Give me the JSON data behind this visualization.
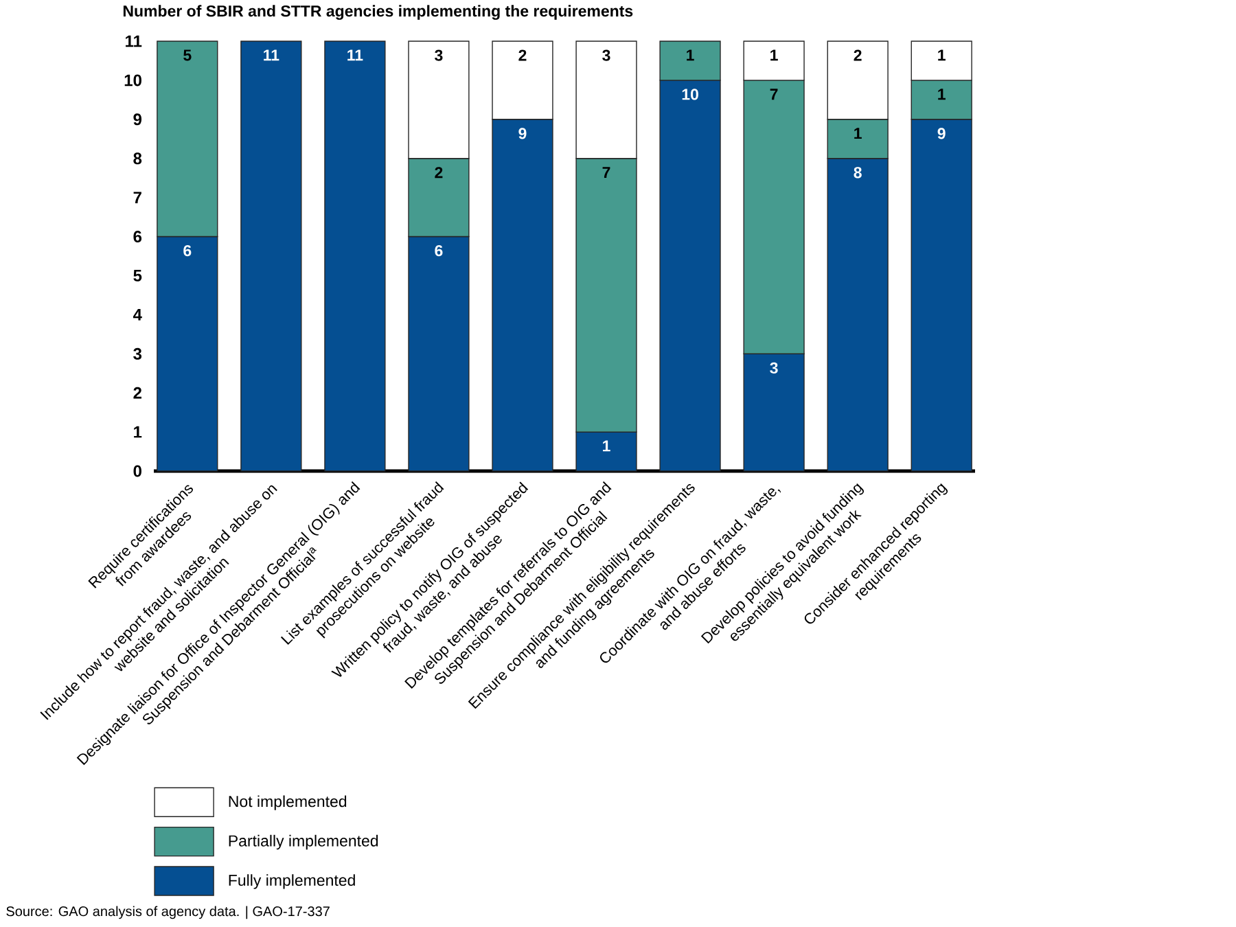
{
  "chart_data": {
    "type": "bar",
    "stacked": true,
    "title": "Number of SBIR and STTR agencies implementing the requirements",
    "categories": [
      "Require certifications from awardees",
      "Include how to report fraud, waste, and abuse on website and solicitation",
      "Designate liaison for Office of Inspector General (OIG) and Suspension and Debarment Official$^{a}$",
      "List examples of successful fraud prosecutions on website",
      "Written policy to notify OIG of suspected fraud, waste, and abuse",
      "Develop templates for referrals to OIG and Suspension and Debarment Official",
      "Ensure compliance with eligibility requirements and funding agreements",
      "Coordinate with OIG on fraud, waste, and abuse efforts",
      "Develop policies to avoid funding essentially equivalent work",
      "Consider enhanced reporting requirements"
    ],
    "series": [
      {
        "name": "Fully implemented",
        "color": "#054f92",
        "values": [
          6,
          11,
          11,
          6,
          9,
          1,
          10,
          3,
          8,
          9
        ]
      },
      {
        "name": "Partially implemented",
        "color": "#469b8f",
        "values": [
          5,
          null,
          null,
          2,
          null,
          7,
          1,
          7,
          1,
          1
        ]
      },
      {
        "name": "Not implemented",
        "color": "#ffffff",
        "values": [
          null,
          null,
          null,
          3,
          2,
          3,
          null,
          1,
          2,
          1
        ]
      }
    ],
    "ylim": [
      0,
      11
    ],
    "yticks": [
      0,
      1,
      2,
      3,
      4,
      5,
      6,
      7,
      8,
      9,
      10,
      11
    ],
    "legend": "bottom left",
    "data_labels": true,
    "annotations": [
      "Source: GAO analysis of agency data. | GAO-17-337"
    ]
  }
}
